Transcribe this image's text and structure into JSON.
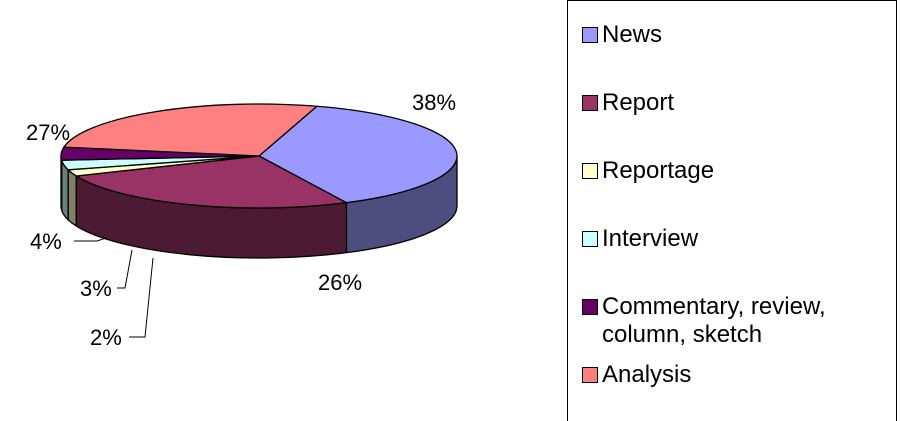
{
  "chart_data": {
    "type": "pie",
    "style": "3d-exploded-none",
    "legend_position": "right",
    "slices": [
      {
        "label": "News",
        "value": 38,
        "value_label": "38%",
        "color": "#9999FF",
        "side_color": "#4D4D80"
      },
      {
        "label": "Report",
        "value": 26,
        "value_label": "26%",
        "color": "#993366",
        "side_color": "#4D1A33"
      },
      {
        "label": "Reportage",
        "value": 2,
        "value_label": "2%",
        "color": "#FFFFCC",
        "side_color": "#808066"
      },
      {
        "label": "Interview",
        "value": 3,
        "value_label": "3%",
        "color": "#CCFFFF",
        "side_color": "#668080"
      },
      {
        "label": "Commentary, review, column, sketch",
        "value": 4,
        "value_label": "4%",
        "color": "#660066",
        "side_color": "#330033"
      },
      {
        "label": "Analysis",
        "value": 27,
        "value_label": "27%",
        "color": "#FF8080",
        "side_color": "#804040"
      }
    ]
  },
  "legend": {
    "items": [
      {
        "label": "News",
        "color": "#9999FF"
      },
      {
        "label": "Report",
        "color": "#993366"
      },
      {
        "label": "Reportage",
        "color": "#FFFFCC"
      },
      {
        "label": "Interview",
        "color": "#CCFFFF"
      },
      {
        "label": "Commentary, review, column, sketch",
        "color": "#660066"
      },
      {
        "label": "Analysis",
        "color": "#FF8080"
      }
    ]
  }
}
